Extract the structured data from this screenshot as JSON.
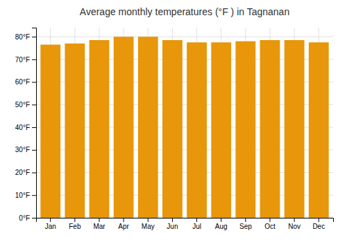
{
  "chart_data": {
    "type": "bar",
    "title": "Average monthly temperatures (°F ) in Tagnanan",
    "categories": [
      "Jan",
      "Feb",
      "Mar",
      "Apr",
      "May",
      "Jun",
      "Jul",
      "Aug",
      "Sep",
      "Oct",
      "Nov",
      "Dec"
    ],
    "values": [
      76.5,
      77.0,
      78.5,
      80.0,
      80.0,
      78.5,
      77.5,
      77.5,
      78.0,
      78.5,
      78.5,
      77.5
    ],
    "color": "#e8960a",
    "ylim": [
      0,
      84
    ],
    "yticks": [
      {
        "value": 0,
        "label": "0°F"
      },
      {
        "value": 10,
        "label": "10°F"
      },
      {
        "value": 20,
        "label": "20°F"
      },
      {
        "value": 30,
        "label": "30°F"
      },
      {
        "value": 40,
        "label": "40°F"
      },
      {
        "value": 50,
        "label": "50°F"
      },
      {
        "value": 60,
        "label": "60°F"
      },
      {
        "value": 70,
        "label": "70°F"
      },
      {
        "value": 80,
        "label": "80°F"
      }
    ],
    "grid": true
  }
}
